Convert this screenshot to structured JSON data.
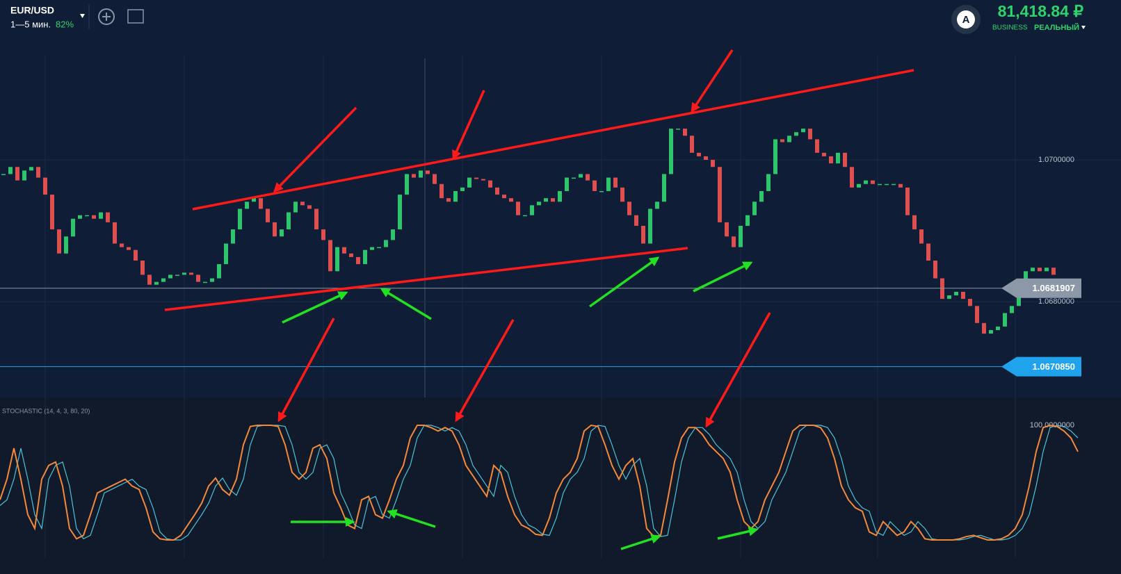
{
  "header": {
    "pair": "EUR/USD",
    "timeframe": "1—5 мин.",
    "payout": "82%",
    "avatar": "A",
    "balance": "81,418.84 ₽",
    "account_type": "BUSINESS",
    "account_mode": "РЕАЛЬНЫЙ"
  },
  "chart_data": [
    {
      "type": "candlestick",
      "up_color": "#2fc56c",
      "down_color": "#de4f4f",
      "ylim": [
        1.06665,
        1.07147
      ],
      "yticks": [
        {
          "value": 1.068,
          "label": "1.0680000"
        },
        {
          "value": 1.07,
          "label": "1.0700000"
        }
      ],
      "price_lines": [
        {
          "value": 1.0681907,
          "label": "1.0681907",
          "color": "#8c98a8"
        },
        {
          "value": 1.067085,
          "label": "1.0670850",
          "color": "#1fa3ec"
        }
      ],
      "close": [
        1.0698,
        1.0699,
        1.06971,
        1.06985,
        1.0699,
        1.06975,
        1.06951,
        1.06902,
        1.06868,
        1.06892,
        1.06917,
        1.06922,
        1.06922,
        1.06917,
        1.06926,
        1.06912,
        1.06882,
        1.06877,
        1.06873,
        1.06858,
        1.06838,
        1.06824,
        1.06828,
        1.06833,
        1.06838,
        1.06838,
        1.06841,
        1.06838,
        1.06828,
        1.06828,
        1.06833,
        1.06853,
        1.06882,
        1.06902,
        1.06931,
        1.06941,
        1.06946,
        1.06931,
        1.06912,
        1.06892,
        1.06902,
        1.06926,
        1.06941,
        1.06936,
        1.06931,
        1.06902,
        1.06887,
        1.06843,
        1.06877,
        1.06868,
        1.06863,
        1.06853,
        1.06873,
        1.06877,
        1.06877,
        1.06887,
        1.06902,
        1.06951,
        1.0698,
        1.06975,
        1.06985,
        1.0698,
        1.06966,
        1.06946,
        1.06941,
        1.06956,
        1.06961,
        1.06975,
        1.06973,
        1.06971,
        1.06961,
        1.06951,
        1.06946,
        1.06941,
        1.06922,
        1.06922,
        1.06936,
        1.06941,
        1.06946,
        1.06941,
        1.06956,
        1.06975,
        1.06975,
        1.0698,
        1.06971,
        1.06956,
        1.06956,
        1.06975,
        1.06961,
        1.06941,
        1.06922,
        1.06907,
        1.06882,
        1.06931,
        1.06941,
        1.0698,
        1.07044,
        1.07044,
        1.07034,
        1.0701,
        1.07005,
        1.07,
        1.0699,
        1.06912,
        1.06892,
        1.06877,
        1.06907,
        1.06922,
        1.06941,
        1.06956,
        1.0698,
        1.07029,
        1.07025,
        1.07034,
        1.07039,
        1.07044,
        1.07029,
        1.0701,
        1.07005,
        1.06995,
        1.0701,
        1.0699,
        1.06961,
        1.06966,
        1.06971,
        1.06966,
        1.06966,
        1.06966,
        1.06966,
        1.06961,
        1.06922,
        1.06902,
        1.06882,
        1.06858,
        1.06833,
        1.06804,
        1.06809,
        1.06814,
        1.06804,
        1.06794,
        1.0677,
        1.06755,
        1.0676,
        1.06765,
        1.06784,
        1.06794,
        1.06819,
        1.06843,
        1.06848,
        1.06843,
        1.06848,
        1.06838
      ]
    },
    {
      "type": "line",
      "title": "STOCHASTIC (14, 4, 3, 80, 20)",
      "ylim": [
        0,
        100
      ],
      "yticks": [
        {
          "value": 100,
          "label": "100.0000000"
        }
      ],
      "series": [
        {
          "color": "#f5893a",
          "values": [
            35,
            53,
            80,
            53,
            22,
            10,
            53,
            65,
            68,
            47,
            10,
            1,
            4,
            22,
            41,
            44,
            47,
            50,
            53,
            47,
            44,
            28,
            7,
            1,
            0,
            0,
            4,
            13,
            22,
            32,
            47,
            54,
            44,
            39,
            53,
            83,
            99,
            100,
            100,
            100,
            99,
            83,
            59,
            53,
            59,
            80,
            83,
            71,
            41,
            28,
            13,
            10,
            35,
            38,
            22,
            19,
            35,
            53,
            65,
            89,
            100,
            100,
            98,
            95,
            98,
            95,
            83,
            65,
            56,
            47,
            38,
            65,
            59,
            38,
            22,
            13,
            10,
            5,
            4,
            19,
            41,
            53,
            59,
            71,
            95,
            100,
            99,
            83,
            65,
            53,
            65,
            71,
            47,
            10,
            3,
            4,
            35,
            68,
            89,
            98,
            98,
            92,
            83,
            77,
            71,
            59,
            35,
            16,
            10,
            16,
            35,
            47,
            59,
            77,
            95,
            100,
            100,
            100,
            98,
            89,
            71,
            47,
            35,
            28,
            25,
            7,
            4,
            16,
            10,
            4,
            7,
            16,
            10,
            1,
            0,
            0,
            0,
            0,
            1,
            3,
            4,
            2,
            0,
            0,
            1,
            4,
            10,
            22,
            47,
            77,
            98,
            100,
            99,
            95,
            89,
            77
          ]
        },
        {
          "color": "#4cc4d8",
          "values": [
            30,
            35,
            53,
            80,
            53,
            22,
            10,
            53,
            65,
            68,
            47,
            10,
            1,
            4,
            22,
            41,
            44,
            47,
            50,
            53,
            47,
            44,
            28,
            7,
            1,
            0,
            0,
            4,
            13,
            22,
            32,
            47,
            54,
            44,
            39,
            53,
            83,
            99,
            100,
            100,
            100,
            99,
            83,
            59,
            53,
            59,
            80,
            83,
            71,
            41,
            28,
            13,
            10,
            35,
            38,
            22,
            19,
            35,
            53,
            65,
            89,
            100,
            100,
            98,
            95,
            98,
            95,
            83,
            65,
            56,
            47,
            38,
            65,
            59,
            38,
            22,
            13,
            10,
            5,
            4,
            19,
            41,
            53,
            59,
            71,
            95,
            100,
            99,
            83,
            65,
            53,
            65,
            71,
            47,
            10,
            3,
            4,
            35,
            68,
            89,
            98,
            98,
            92,
            83,
            77,
            71,
            59,
            35,
            16,
            10,
            16,
            35,
            47,
            59,
            77,
            95,
            100,
            100,
            100,
            98,
            89,
            71,
            47,
            35,
            28,
            25,
            7,
            4,
            16,
            10,
            4,
            7,
            16,
            10,
            1,
            0,
            0,
            0,
            0,
            1,
            3,
            4,
            2,
            0,
            0,
            1,
            4,
            10,
            22,
            47,
            77,
            98,
            100,
            99,
            95,
            89
          ]
        }
      ]
    }
  ]
}
